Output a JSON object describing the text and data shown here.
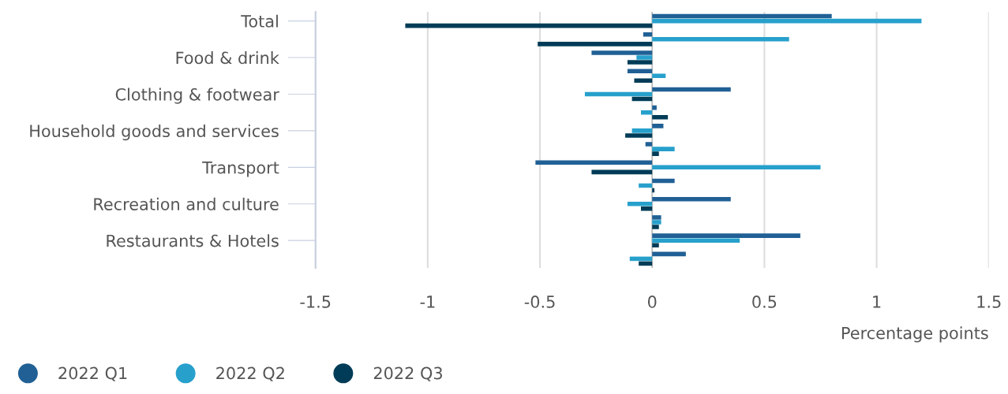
{
  "chart_data": {
    "type": "bar",
    "orientation": "horizontal",
    "xlabel": "Percentage points",
    "categories": [
      "Total",
      null,
      "Food & drink",
      null,
      "Clothing & footwear",
      null,
      "Household goods and services",
      null,
      "Transport",
      null,
      "Recreation and culture",
      null,
      "Restaurants & Hotels",
      null
    ],
    "series": [
      {
        "name": "2022 Q1",
        "color": "#206095",
        "values": [
          0.8,
          -0.04,
          -0.27,
          -0.11,
          0.35,
          0.02,
          0.05,
          -0.03,
          -0.52,
          0.1,
          0.35,
          0.04,
          0.66,
          0.15
        ]
      },
      {
        "name": "2022 Q2",
        "color": "#27a0cc",
        "values": [
          1.2,
          0.61,
          -0.07,
          0.06,
          -0.3,
          -0.05,
          -0.09,
          0.1,
          0.75,
          -0.06,
          -0.11,
          0.04,
          0.39,
          -0.1
        ]
      },
      {
        "name": "2022 Q3",
        "color": "#003c57",
        "values": [
          -1.1,
          -0.51,
          -0.11,
          -0.08,
          -0.09,
          0.07,
          -0.12,
          0.03,
          -0.27,
          0.01,
          -0.05,
          0.03,
          0.03,
          -0.06
        ]
      }
    ],
    "xlim": [
      -1.5,
      1.5
    ],
    "xticks": [
      -1.5,
      -1,
      -0.5,
      0,
      0.5,
      1,
      1.5
    ],
    "grid": "x",
    "legend": "bottom left"
  }
}
